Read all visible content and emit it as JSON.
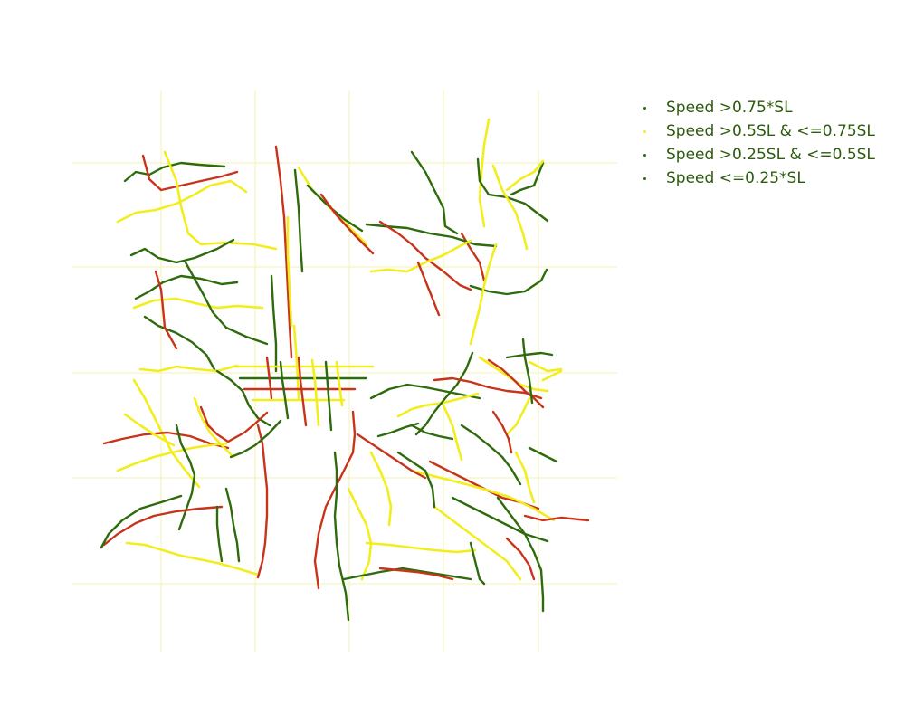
{
  "legend": {
    "placement": "top-right",
    "items": [
      {
        "label": "Speed >0.75*SL",
        "color": "#2e6b0c"
      },
      {
        "label": "Speed >0.5SL & <=0.75SL",
        "color": "#f2ee1e"
      },
      {
        "label": "Speed >0.25SL & <=0.5SL",
        "color": "#2e6b0c"
      },
      {
        "label": "Speed <=0.25*SL",
        "color": "#2e6b0c"
      }
    ]
  },
  "map": {
    "grid": true,
    "grid_color": "#f3f3b6",
    "segment_colors": {
      "high": "#2e6b0c",
      "mid": "#f2ee1e",
      "low": "#c8341b"
    }
  }
}
